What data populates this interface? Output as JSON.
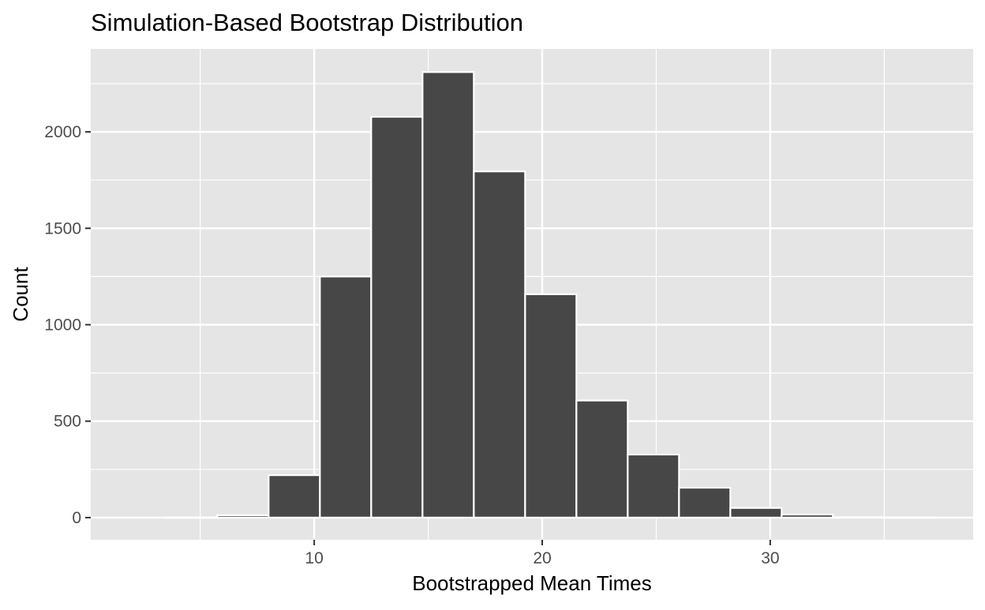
{
  "chart_data": {
    "type": "bar",
    "title": "Simulation-Based Bootstrap Distribution",
    "xlabel": "Bootstrapped Mean Times",
    "ylabel": "Count",
    "bins": [
      {
        "x0": 3.5,
        "x1": 5.75,
        "count": 1
      },
      {
        "x0": 5.75,
        "x1": 8.0,
        "count": 12
      },
      {
        "x0": 8.0,
        "x1": 10.25,
        "count": 220
      },
      {
        "x0": 10.25,
        "x1": 12.5,
        "count": 1250
      },
      {
        "x0": 12.5,
        "x1": 14.75,
        "count": 2078
      },
      {
        "x0": 14.75,
        "x1": 17.0,
        "count": 2310
      },
      {
        "x0": 17.0,
        "x1": 19.25,
        "count": 1795
      },
      {
        "x0": 19.25,
        "x1": 21.5,
        "count": 1158
      },
      {
        "x0": 21.5,
        "x1": 23.75,
        "count": 607
      },
      {
        "x0": 23.75,
        "x1": 26.0,
        "count": 327
      },
      {
        "x0": 26.0,
        "x1": 28.25,
        "count": 155
      },
      {
        "x0": 28.25,
        "x1": 30.5,
        "count": 50
      },
      {
        "x0": 30.5,
        "x1": 32.75,
        "count": 16
      },
      {
        "x0": 32.75,
        "x1": 35.0,
        "count": 2
      },
      {
        "x0": 35.0,
        "x1": 37.25,
        "count": 1
      }
    ],
    "xlim": [
      0.2,
      38.9
    ],
    "ylim": [
      -115,
      2430
    ],
    "xticks": [
      10,
      20,
      30
    ],
    "yticks": [
      0,
      500,
      1000,
      1500,
      2000
    ],
    "xminor": [
      5,
      15,
      25,
      35
    ],
    "yminor": [
      250,
      750,
      1250,
      1750,
      2250
    ],
    "grid": true,
    "legend": "none",
    "colors": {
      "panel": "#e5e5e5",
      "grid": "#ffffff",
      "bar_fill": "#474747",
      "bar_stroke": "#ffffff",
      "tick_text": "#4d4d4d",
      "tick_mark": "#333333",
      "title_text": "#000000"
    }
  }
}
